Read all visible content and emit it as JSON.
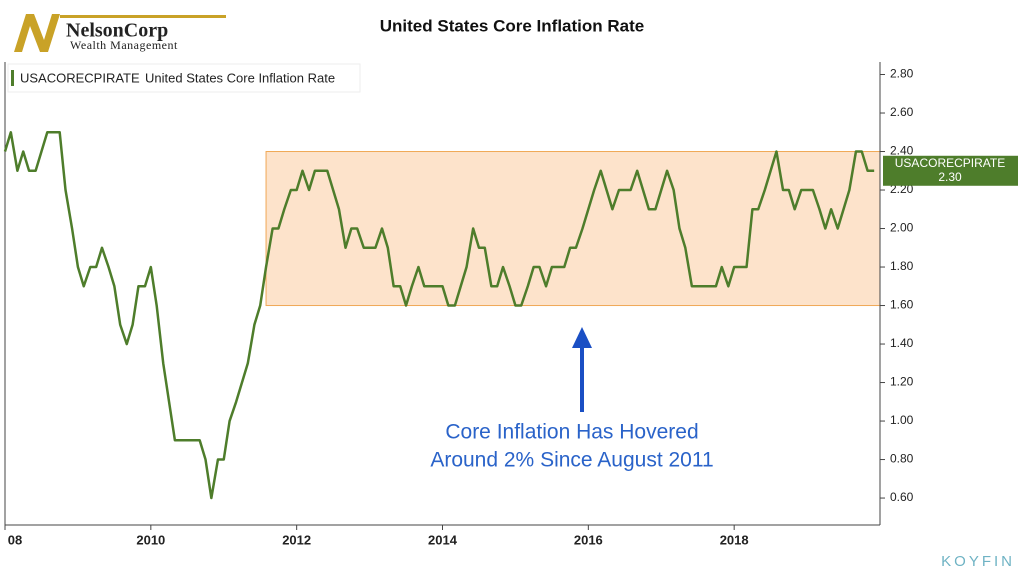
{
  "logo": {
    "name": "NelsonCorp",
    "tagline": "Wealth Management"
  },
  "watermark": "KOYFIN",
  "chart_data": {
    "type": "line",
    "title": "United States Core Inflation Rate",
    "x": [
      2008,
      2008.08,
      2008.17,
      2008.25,
      2008.33,
      2008.42,
      2008.5,
      2008.58,
      2008.67,
      2008.75,
      2008.83,
      2008.92,
      2009,
      2009.08,
      2009.17,
      2009.25,
      2009.33,
      2009.42,
      2009.5,
      2009.58,
      2009.67,
      2009.75,
      2009.83,
      2009.92,
      2010,
      2010.08,
      2010.17,
      2010.25,
      2010.33,
      2010.42,
      2010.5,
      2010.58,
      2010.67,
      2010.75,
      2010.83,
      2010.92,
      2011,
      2011.08,
      2011.17,
      2011.25,
      2011.33,
      2011.42,
      2011.5,
      2011.58,
      2011.67,
      2011.75,
      2011.83,
      2011.92,
      2012,
      2012.08,
      2012.17,
      2012.25,
      2012.33,
      2012.42,
      2012.5,
      2012.58,
      2012.67,
      2012.75,
      2012.83,
      2012.92,
      2013,
      2013.08,
      2013.17,
      2013.25,
      2013.33,
      2013.42,
      2013.5,
      2013.58,
      2013.67,
      2013.75,
      2013.83,
      2013.92,
      2014,
      2014.08,
      2014.17,
      2014.25,
      2014.33,
      2014.42,
      2014.5,
      2014.58,
      2014.67,
      2014.75,
      2014.83,
      2014.92,
      2015,
      2015.08,
      2015.17,
      2015.25,
      2015.33,
      2015.42,
      2015.5,
      2015.58,
      2015.67,
      2015.75,
      2015.83,
      2015.92,
      2016,
      2016.08,
      2016.17,
      2016.25,
      2016.33,
      2016.42,
      2016.5,
      2016.58,
      2016.67,
      2016.75,
      2016.83,
      2016.92,
      2017,
      2017.08,
      2017.17,
      2017.25,
      2017.33,
      2017.42,
      2017.5,
      2017.58,
      2017.67,
      2017.75,
      2017.83,
      2017.92,
      2018,
      2018.08,
      2018.17,
      2018.25,
      2018.33,
      2018.42,
      2018.5,
      2018.58,
      2018.67,
      2018.75,
      2018.83,
      2018.92,
      2019,
      2019.08,
      2019.17,
      2019.25,
      2019.33,
      2019.42,
      2019.5,
      2019.58,
      2019.67,
      2019.75,
      2019.83,
      2019.92
    ],
    "series": [
      {
        "name": "USACORECPIRATE",
        "description": "United States Core Inflation Rate",
        "color": "#4e7d2b",
        "badge_label": "2.30",
        "values": [
          2.4,
          2.5,
          2.3,
          2.4,
          2.3,
          2.3,
          2.4,
          2.5,
          2.5,
          2.5,
          2.2,
          2.0,
          1.8,
          1.7,
          1.8,
          1.8,
          1.9,
          1.8,
          1.7,
          1.5,
          1.4,
          1.5,
          1.7,
          1.7,
          1.8,
          1.6,
          1.3,
          1.1,
          0.9,
          0.9,
          0.9,
          0.9,
          0.9,
          0.8,
          0.6,
          0.8,
          0.8,
          1.0,
          1.1,
          1.2,
          1.3,
          1.5,
          1.6,
          1.8,
          2.0,
          2.0,
          2.1,
          2.2,
          2.2,
          2.3,
          2.2,
          2.3,
          2.3,
          2.3,
          2.2,
          2.1,
          1.9,
          2.0,
          2.0,
          1.9,
          1.9,
          1.9,
          2.0,
          1.9,
          1.7,
          1.7,
          1.6,
          1.7,
          1.8,
          1.7,
          1.7,
          1.7,
          1.7,
          1.6,
          1.6,
          1.7,
          1.8,
          2.0,
          1.9,
          1.9,
          1.7,
          1.7,
          1.8,
          1.7,
          1.6,
          1.6,
          1.7,
          1.8,
          1.8,
          1.7,
          1.8,
          1.8,
          1.8,
          1.9,
          1.9,
          2.0,
          2.1,
          2.2,
          2.3,
          2.2,
          2.1,
          2.2,
          2.2,
          2.2,
          2.3,
          2.2,
          2.1,
          2.1,
          2.2,
          2.3,
          2.2,
          2.0,
          1.9,
          1.7,
          1.7,
          1.7,
          1.7,
          1.7,
          1.8,
          1.7,
          1.8,
          1.8,
          1.8,
          2.1,
          2.1,
          2.2,
          2.3,
          2.4,
          2.2,
          2.2,
          2.1,
          2.2,
          2.2,
          2.2,
          2.1,
          2.0,
          2.1,
          2.0,
          2.1,
          2.2,
          2.4,
          2.4,
          2.3,
          2.3
        ]
      }
    ],
    "band": {
      "x_start": 2011.58,
      "ymin": 1.6,
      "ymax": 2.4
    },
    "annotation": [
      "Core Inflation Has Hovered",
      "Around 2% Since August 2011"
    ],
    "xlim": [
      2008,
      2020
    ],
    "xticks": [
      {
        "value": 2008,
        "label": "08"
      },
      2010,
      2012,
      2014,
      2016,
      2018
    ],
    "ylim": [
      0.46,
      2.865
    ],
    "yticks": [
      {
        "value": 0.6,
        "label": "0.60"
      },
      {
        "value": 0.8,
        "label": "0.80"
      },
      {
        "value": 1.0,
        "label": "1.00"
      },
      {
        "value": 1.2,
        "label": "1.20"
      },
      {
        "value": 1.4,
        "label": "1.40"
      },
      {
        "value": 1.6,
        "label": "1.60"
      },
      {
        "value": 1.8,
        "label": "1.80"
      },
      {
        "value": 2.0,
        "label": "2.00"
      },
      {
        "value": 2.2,
        "label": "2.20"
      },
      {
        "value": 2.4,
        "label": "2.40"
      },
      {
        "value": 2.6,
        "label": "2.60"
      },
      {
        "value": 2.8,
        "label": "2.80"
      }
    ]
  }
}
